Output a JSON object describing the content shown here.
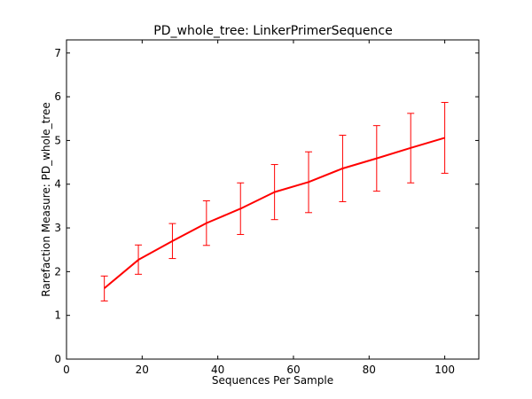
{
  "chart_data": {
    "type": "line",
    "title": "PD_whole_tree: LinkerPrimerSequence",
    "xlabel": "Sequences Per Sample",
    "ylabel": "Rarefaction Measure: PD_whole_tree",
    "xlim": [
      0,
      109
    ],
    "ylim": [
      0,
      7.3
    ],
    "x_ticks": [
      0,
      20,
      40,
      60,
      80,
      100
    ],
    "y_ticks": [
      0,
      1,
      2,
      3,
      4,
      5,
      6,
      7
    ],
    "grid": false,
    "legend": "none",
    "series": [
      {
        "color": "#ff0000",
        "x": [
          10,
          19,
          28,
          37,
          46,
          55,
          64,
          73,
          82,
          91,
          100
        ],
        "y": [
          1.62,
          2.27,
          2.7,
          3.11,
          3.44,
          3.82,
          4.05,
          4.36,
          4.59,
          4.83,
          5.06
        ],
        "error_low": [
          1.33,
          1.94,
          2.3,
          2.6,
          2.85,
          3.19,
          3.35,
          3.6,
          3.84,
          4.03,
          4.25
        ],
        "error_high": [
          1.9,
          2.61,
          3.1,
          3.62,
          4.03,
          4.45,
          4.74,
          5.12,
          5.34,
          5.62,
          5.87
        ]
      }
    ]
  }
}
